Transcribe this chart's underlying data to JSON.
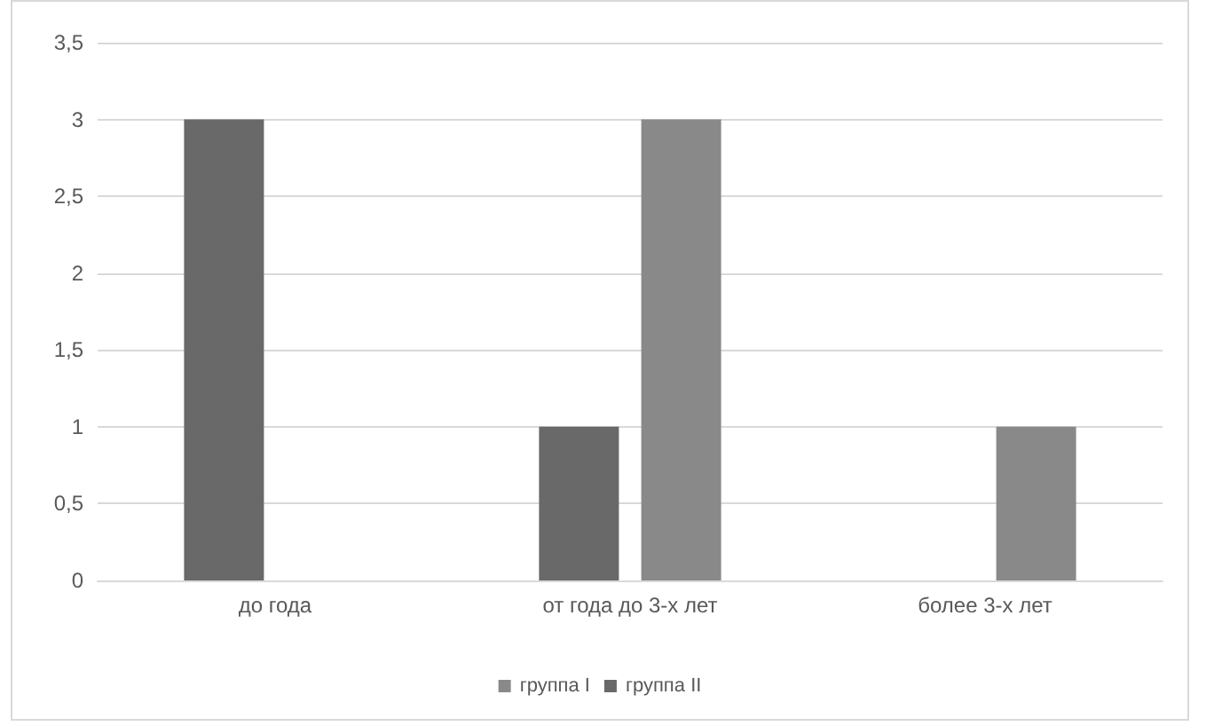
{
  "chart_data": {
    "type": "bar",
    "categories": [
      "до года",
      "от года до 3-х лет",
      "более 3-х лет"
    ],
    "series": [
      {
        "name": "группа II",
        "color": "#696969",
        "values": [
          3,
          1,
          0
        ]
      },
      {
        "name": "группа I",
        "color": "#898989",
        "values": [
          0,
          3,
          1
        ]
      }
    ],
    "ylim": [
      0,
      3.5
    ],
    "yticks": [
      0,
      {
        "value": 0.5,
        "label": "0,5"
      },
      1,
      {
        "value": 1.5,
        "label": "1,5"
      },
      2,
      {
        "value": 2.5,
        "label": "2,5"
      },
      3,
      {
        "value": 3.5,
        "label": "3,5"
      }
    ],
    "grid": "y",
    "legend": "bottom"
  }
}
